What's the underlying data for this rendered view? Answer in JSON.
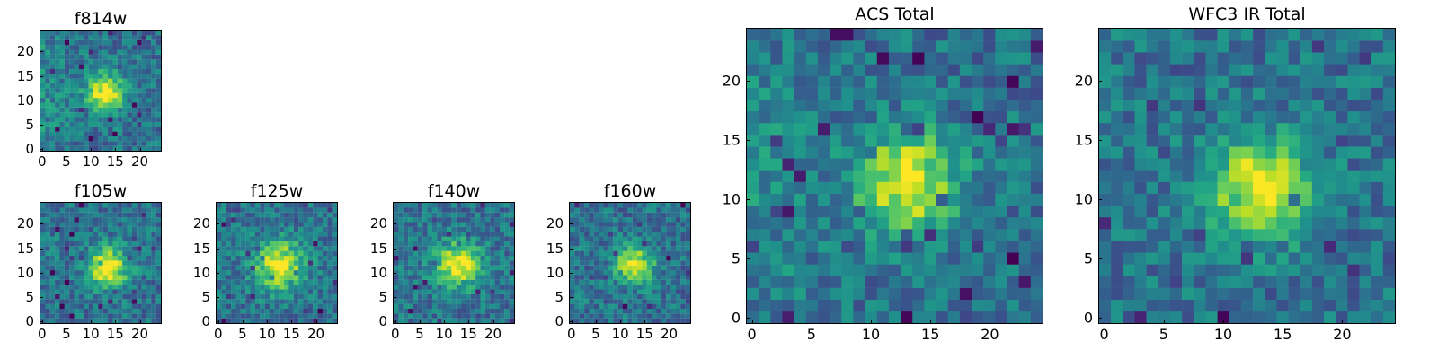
{
  "chart_data": [
    {
      "type": "heatmap",
      "title": "f814w",
      "xlim": [
        0,
        25
      ],
      "ylim": [
        0,
        25
      ],
      "xticks": [
        "0",
        "5",
        "10",
        "15",
        "20"
      ],
      "yticks": [
        "0",
        "5",
        "10",
        "15",
        "20"
      ],
      "colormap": "viridis",
      "peak": [
        13.5,
        12
      ],
      "sigma": 2.8,
      "bg_gradient": 0.55,
      "seed": 11
    },
    {
      "type": "heatmap",
      "title": "f105w",
      "xlim": [
        0,
        25
      ],
      "ylim": [
        0,
        25
      ],
      "xticks": [
        "0",
        "5",
        "10",
        "15",
        "20"
      ],
      "yticks": [
        "0",
        "5",
        "10",
        "15",
        "20"
      ],
      "colormap": "viridis",
      "peak": [
        14,
        11.5
      ],
      "sigma": 3.0,
      "bg_gradient": 0.1,
      "seed": 23
    },
    {
      "type": "heatmap",
      "title": "f125w",
      "xlim": [
        0,
        25
      ],
      "ylim": [
        0,
        25
      ],
      "xticks": [
        "0",
        "5",
        "10",
        "15",
        "20"
      ],
      "yticks": [
        "0",
        "5",
        "10",
        "15",
        "20"
      ],
      "colormap": "viridis",
      "peak": [
        13,
        12
      ],
      "sigma": 3.6,
      "bg_gradient": 0.1,
      "seed": 37
    },
    {
      "type": "heatmap",
      "title": "f140w",
      "xlim": [
        0,
        25
      ],
      "ylim": [
        0,
        25
      ],
      "xticks": [
        "0",
        "5",
        "10",
        "15",
        "20"
      ],
      "yticks": [
        "0",
        "5",
        "10",
        "15",
        "20"
      ],
      "colormap": "viridis",
      "peak": [
        13.5,
        12
      ],
      "sigma": 3.3,
      "bg_gradient": 0.1,
      "seed": 41
    },
    {
      "type": "heatmap",
      "title": "f160w",
      "xlim": [
        0,
        25
      ],
      "ylim": [
        0,
        25
      ],
      "xticks": [
        "0",
        "5",
        "10",
        "15",
        "20"
      ],
      "yticks": [
        "0",
        "5",
        "10",
        "15",
        "20"
      ],
      "colormap": "viridis",
      "peak": [
        13.5,
        12
      ],
      "sigma": 2.7,
      "bg_gradient": 0.05,
      "seed": 53
    },
    {
      "type": "heatmap",
      "title": "ACS Total",
      "xlim": [
        0,
        25
      ],
      "ylim": [
        0,
        25
      ],
      "xticks": [
        "0",
        "5",
        "10",
        "15",
        "20"
      ],
      "yticks": [
        "0",
        "5",
        "10",
        "15",
        "20"
      ],
      "colormap": "viridis",
      "peak": [
        13.5,
        12
      ],
      "sigma": 2.9,
      "bg_gradient": 0.55,
      "seed": 67
    },
    {
      "type": "heatmap",
      "title": "WFC3 IR Total",
      "xlim": [
        0,
        25
      ],
      "ylim": [
        0,
        25
      ],
      "xticks": [
        "0",
        "5",
        "10",
        "15",
        "20"
      ],
      "yticks": [
        "0",
        "5",
        "10",
        "15",
        "20"
      ],
      "colormap": "viridis",
      "peak": [
        13.5,
        11.5
      ],
      "sigma": 3.0,
      "bg_gradient": 0.1,
      "seed": 79
    }
  ]
}
